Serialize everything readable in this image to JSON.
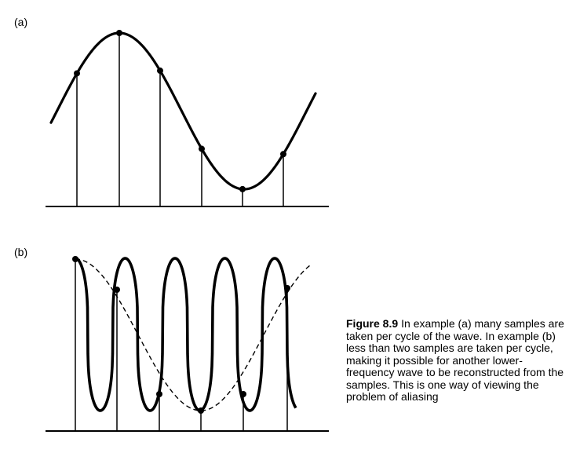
{
  "panel_a": {
    "label": "(a)",
    "sample_count": 6,
    "sample_phases": [
      0.375,
      0.5,
      0.625,
      0.75,
      0.875,
      1.0
    ]
  },
  "panel_b": {
    "label": "(b)",
    "solid_wave_cycles": 5,
    "dashed_wave_cycles": 1,
    "sample_count": 6
  },
  "caption": {
    "figure_number": "Figure 8.9",
    "text": "In example (a) many samples are taken per cycle of the wave. In example (b) less than two samples are taken per cycle, making it possible for another lower-frequency wave to be reconstructed from the samples. This is one way of viewing the problem of aliasing"
  }
}
